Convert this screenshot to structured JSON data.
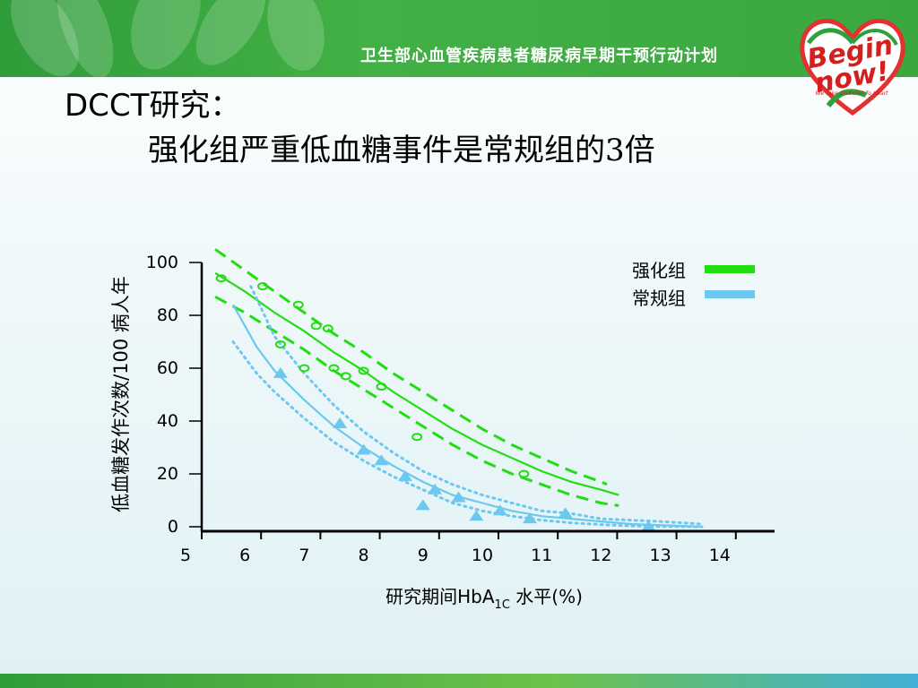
{
  "header": {
    "program_title": "卫生部心血管疾病患者糖尿病早期干预行动计划"
  },
  "logo": {
    "line1": "Begin",
    "line2": "now!",
    "tagline": "We Take Diabetes To Heart"
  },
  "slide": {
    "title_prefix": "DCCT",
    "title_cn": "研究：",
    "subtitle": "强化组严重低血糖事件是常规组的3倍"
  },
  "colors": {
    "intensive": "#22dd11",
    "conventional": "#6cc8ee",
    "axis": "#000000"
  },
  "chart_data": {
    "type": "scatter",
    "title": "",
    "xlabel": {
      "prefix": "研究期间HbA",
      "subscript": "1C",
      "suffix": " 水平(%)"
    },
    "ylabel": "低血糖发作次数/100 病人年",
    "xlim": [
      5,
      15
    ],
    "ylim": [
      0,
      100
    ],
    "x_ticks": [
      5,
      6,
      7,
      8,
      9,
      10,
      11,
      12,
      13,
      14
    ],
    "y_ticks": [
      0,
      20,
      40,
      60,
      80,
      100
    ],
    "legend_position": "top-right",
    "grid": false,
    "series": [
      {
        "name": "强化组",
        "marker": "circle",
        "points": [
          [
            5.6,
            94
          ],
          [
            6.3,
            91
          ],
          [
            6.6,
            69
          ],
          [
            6.9,
            84
          ],
          [
            7.0,
            60
          ],
          [
            7.2,
            76
          ],
          [
            7.4,
            75
          ],
          [
            7.5,
            60
          ],
          [
            7.7,
            57
          ],
          [
            8.0,
            59
          ],
          [
            8.3,
            53
          ],
          [
            8.9,
            34
          ],
          [
            10.7,
            20
          ]
        ],
        "fit": [
          [
            5.5,
            96
          ],
          [
            6,
            89
          ],
          [
            6.5,
            81
          ],
          [
            7,
            74
          ],
          [
            7.5,
            66
          ],
          [
            8,
            59
          ],
          [
            8.5,
            51
          ],
          [
            9,
            44
          ],
          [
            9.5,
            37
          ],
          [
            10,
            31
          ],
          [
            10.5,
            26
          ],
          [
            11,
            21
          ],
          [
            11.5,
            17
          ],
          [
            12,
            14
          ],
          [
            12.3,
            12
          ]
        ],
        "upper": [
          [
            5.5,
            105
          ],
          [
            6,
            97
          ],
          [
            6.5,
            89
          ],
          [
            7,
            81
          ],
          [
            7.5,
            73
          ],
          [
            8,
            66
          ],
          [
            8.5,
            58
          ],
          [
            9,
            51
          ],
          [
            9.5,
            44
          ],
          [
            10,
            37
          ],
          [
            10.5,
            31
          ],
          [
            11,
            26
          ],
          [
            11.5,
            21
          ],
          [
            12,
            17
          ],
          [
            12.1,
            16
          ]
        ],
        "lower": [
          [
            5.5,
            87
          ],
          [
            6,
            81
          ],
          [
            6.5,
            74
          ],
          [
            7,
            67
          ],
          [
            7.5,
            59
          ],
          [
            8,
            52
          ],
          [
            8.5,
            45
          ],
          [
            9,
            38
          ],
          [
            9.5,
            31
          ],
          [
            10,
            25
          ],
          [
            10.5,
            20
          ],
          [
            11,
            16
          ],
          [
            11.5,
            12
          ],
          [
            12,
            9
          ],
          [
            12.3,
            8
          ]
        ]
      },
      {
        "name": "常规组",
        "marker": "triangle",
        "points": [
          [
            6.6,
            58
          ],
          [
            7.6,
            39
          ],
          [
            8.0,
            29
          ],
          [
            8.3,
            25
          ],
          [
            8.7,
            19
          ],
          [
            9.0,
            8
          ],
          [
            9.2,
            14
          ],
          [
            9.6,
            11
          ],
          [
            9.9,
            4
          ],
          [
            10.3,
            6
          ],
          [
            10.8,
            3
          ],
          [
            11.4,
            5
          ],
          [
            12.8,
            0
          ]
        ],
        "fit": [
          [
            5.8,
            84
          ],
          [
            6.2,
            68
          ],
          [
            6.5,
            59
          ],
          [
            7,
            48
          ],
          [
            7.5,
            38
          ],
          [
            8,
            30
          ],
          [
            8.5,
            23
          ],
          [
            9,
            17
          ],
          [
            9.5,
            12
          ],
          [
            10,
            9
          ],
          [
            10.5,
            6
          ],
          [
            11,
            4
          ],
          [
            11.5,
            3
          ],
          [
            12,
            2
          ],
          [
            12.5,
            1
          ],
          [
            13,
            0.6
          ],
          [
            13.7,
            0
          ]
        ],
        "upper": [
          [
            6.1,
            91
          ],
          [
            6.5,
            72
          ],
          [
            7,
            58
          ],
          [
            7.5,
            46
          ],
          [
            8,
            36
          ],
          [
            8.5,
            28
          ],
          [
            9,
            21
          ],
          [
            9.5,
            16
          ],
          [
            10,
            12
          ],
          [
            10.5,
            9
          ],
          [
            11,
            6
          ],
          [
            11.5,
            5
          ],
          [
            12,
            3
          ],
          [
            12.5,
            2.5
          ],
          [
            13,
            2
          ],
          [
            13.7,
            1
          ]
        ],
        "lower": [
          [
            5.8,
            70
          ],
          [
            6.2,
            58
          ],
          [
            6.5,
            51
          ],
          [
            7,
            41
          ],
          [
            7.5,
            32
          ],
          [
            8,
            25
          ],
          [
            8.5,
            19
          ],
          [
            9,
            14
          ],
          [
            9.5,
            9
          ],
          [
            10,
            6
          ],
          [
            10.5,
            4
          ],
          [
            11,
            2.5
          ],
          [
            11.5,
            1.5
          ],
          [
            12,
            0.8
          ],
          [
            12.5,
            0.3
          ],
          [
            13,
            0.1
          ],
          [
            13.7,
            0
          ]
        ]
      }
    ]
  }
}
